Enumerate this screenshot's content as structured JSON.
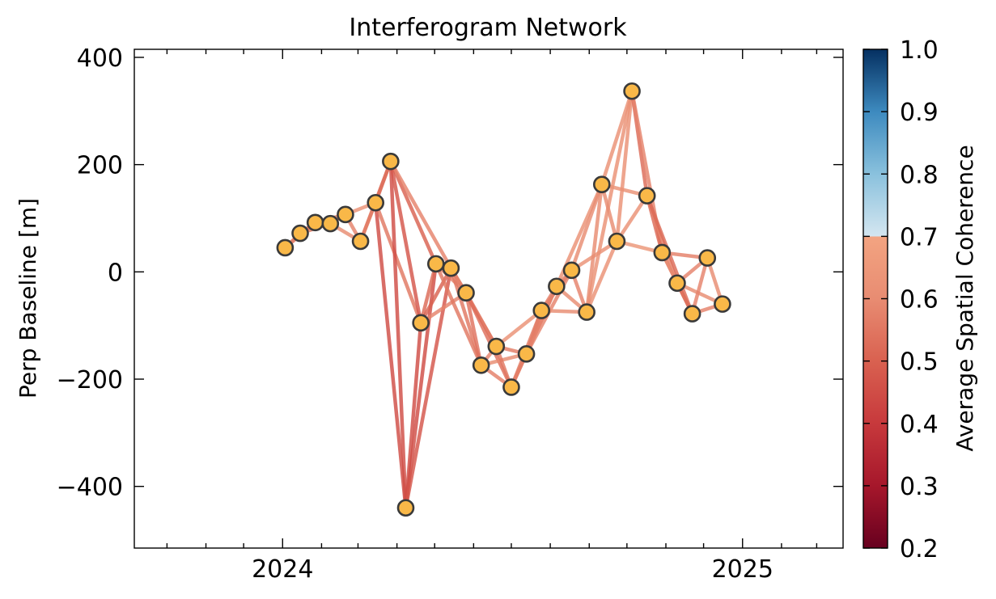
{
  "chart_data": {
    "type": "scatter",
    "title": "Interferogram Network",
    "xlabel": "",
    "ylabel": "Perp Baseline [m]",
    "xlim": [
      "2023-09-05",
      "2025-03-22"
    ],
    "ylim": [
      -515,
      415
    ],
    "x_ticks": [
      {
        "date": "2024-01-01",
        "label": "2024"
      },
      {
        "date": "2025-01-01",
        "label": "2025"
      }
    ],
    "x_minor_ticks": [
      "2023-10-01",
      "2023-11-01",
      "2023-12-01",
      "2024-02-01",
      "2024-03-01",
      "2024-04-01",
      "2024-05-01",
      "2024-06-01",
      "2024-07-01",
      "2024-08-01",
      "2024-09-01",
      "2024-10-01",
      "2024-11-01",
      "2024-12-01",
      "2025-02-01",
      "2025-03-01"
    ],
    "y_ticks": [
      -400,
      -200,
      0,
      200,
      400
    ],
    "y_tick_labels": [
      "−400",
      "−200",
      "0",
      "200",
      "400"
    ],
    "grid": false,
    "node_color": "#f9b848",
    "node_edge_color": "#3a3a3a",
    "acquisitions": [
      {
        "date": "2024-01-03",
        "bperp": 45
      },
      {
        "date": "2024-01-15",
        "bperp": 72
      },
      {
        "date": "2024-01-27",
        "bperp": 92
      },
      {
        "date": "2024-02-08",
        "bperp": 90
      },
      {
        "date": "2024-02-20",
        "bperp": 107
      },
      {
        "date": "2024-03-03",
        "bperp": 57
      },
      {
        "date": "2024-03-15",
        "bperp": 129
      },
      {
        "date": "2024-03-27",
        "bperp": 206
      },
      {
        "date": "2024-04-08",
        "bperp": -440
      },
      {
        "date": "2024-04-20",
        "bperp": -95
      },
      {
        "date": "2024-05-02",
        "bperp": 15
      },
      {
        "date": "2024-05-14",
        "bperp": 7
      },
      {
        "date": "2024-05-26",
        "bperp": -39
      },
      {
        "date": "2024-06-07",
        "bperp": -174
      },
      {
        "date": "2024-06-19",
        "bperp": -139
      },
      {
        "date": "2024-07-01",
        "bperp": -215
      },
      {
        "date": "2024-07-13",
        "bperp": -153
      },
      {
        "date": "2024-07-25",
        "bperp": -72
      },
      {
        "date": "2024-08-06",
        "bperp": -27
      },
      {
        "date": "2024-08-18",
        "bperp": 3
      },
      {
        "date": "2024-08-30",
        "bperp": -75
      },
      {
        "date": "2024-09-11",
        "bperp": 163
      },
      {
        "date": "2024-09-23",
        "bperp": 57
      },
      {
        "date": "2024-10-05",
        "bperp": 337
      },
      {
        "date": "2024-10-17",
        "bperp": 142
      },
      {
        "date": "2024-10-29",
        "bperp": 36
      },
      {
        "date": "2024-11-10",
        "bperp": -21
      },
      {
        "date": "2024-11-22",
        "bperp": -78
      },
      {
        "date": "2024-12-04",
        "bperp": 26
      },
      {
        "date": "2024-12-16",
        "bperp": -60
      }
    ],
    "interferograms": [
      [
        0,
        1,
        0.55
      ],
      [
        0,
        2,
        0.57
      ],
      [
        1,
        2,
        0.55
      ],
      [
        1,
        3,
        0.56
      ],
      [
        2,
        3,
        0.56
      ],
      [
        2,
        4,
        0.58
      ],
      [
        3,
        4,
        0.57
      ],
      [
        3,
        5,
        0.6
      ],
      [
        4,
        5,
        0.58
      ],
      [
        4,
        6,
        0.62
      ],
      [
        5,
        6,
        0.6
      ],
      [
        5,
        7,
        0.55
      ],
      [
        6,
        7,
        0.52
      ],
      [
        6,
        8,
        0.45
      ],
      [
        6,
        9,
        0.55
      ],
      [
        7,
        8,
        0.45
      ],
      [
        7,
        9,
        0.47
      ],
      [
        7,
        10,
        0.5
      ],
      [
        7,
        11,
        0.58
      ],
      [
        8,
        9,
        0.45
      ],
      [
        8,
        10,
        0.45
      ],
      [
        8,
        11,
        0.47
      ],
      [
        9,
        10,
        0.52
      ],
      [
        9,
        11,
        0.5
      ],
      [
        9,
        12,
        0.58
      ],
      [
        10,
        11,
        0.56
      ],
      [
        10,
        12,
        0.57
      ],
      [
        10,
        13,
        0.55
      ],
      [
        11,
        12,
        0.56
      ],
      [
        11,
        13,
        0.55
      ],
      [
        11,
        14,
        0.57
      ],
      [
        12,
        13,
        0.54
      ],
      [
        12,
        14,
        0.55
      ],
      [
        12,
        15,
        0.53
      ],
      [
        13,
        14,
        0.58
      ],
      [
        13,
        15,
        0.57
      ],
      [
        13,
        16,
        0.6
      ],
      [
        14,
        15,
        0.55
      ],
      [
        14,
        16,
        0.56
      ],
      [
        14,
        17,
        0.62
      ],
      [
        15,
        16,
        0.55
      ],
      [
        15,
        17,
        0.56
      ],
      [
        15,
        18,
        0.57
      ],
      [
        16,
        17,
        0.56
      ],
      [
        16,
        18,
        0.57
      ],
      [
        16,
        19,
        0.58
      ],
      [
        17,
        18,
        0.57
      ],
      [
        17,
        19,
        0.58
      ],
      [
        17,
        20,
        0.6
      ],
      [
        18,
        19,
        0.58
      ],
      [
        18,
        20,
        0.6
      ],
      [
        18,
        21,
        0.62
      ],
      [
        19,
        20,
        0.58
      ],
      [
        19,
        21,
        0.6
      ],
      [
        19,
        22,
        0.62
      ],
      [
        20,
        21,
        0.6
      ],
      [
        20,
        22,
        0.62
      ],
      [
        20,
        23,
        0.62
      ],
      [
        21,
        22,
        0.6
      ],
      [
        21,
        23,
        0.62
      ],
      [
        21,
        24,
        0.62
      ],
      [
        22,
        23,
        0.62
      ],
      [
        22,
        24,
        0.62
      ],
      [
        22,
        25,
        0.64
      ],
      [
        23,
        24,
        0.52
      ],
      [
        23,
        25,
        0.58
      ],
      [
        24,
        25,
        0.52
      ],
      [
        24,
        26,
        0.58
      ],
      [
        24,
        27,
        0.52
      ],
      [
        25,
        26,
        0.55
      ],
      [
        25,
        27,
        0.6
      ],
      [
        25,
        28,
        0.57
      ],
      [
        26,
        27,
        0.52
      ],
      [
        26,
        28,
        0.58
      ],
      [
        26,
        29,
        0.6
      ],
      [
        27,
        28,
        0.58
      ],
      [
        27,
        29,
        0.58
      ],
      [
        28,
        29,
        0.6
      ]
    ],
    "colorbar": {
      "label": "Average Spatial Coherence",
      "range": [
        0.2,
        1.0
      ],
      "ticks": [
        0.2,
        0.3,
        0.4,
        0.5,
        0.6,
        0.7,
        0.8,
        0.9,
        1.0
      ],
      "tick_labels": [
        "0.2",
        "0.3",
        "0.4",
        "0.5",
        "0.6",
        "0.7",
        "0.8",
        "0.9",
        "1.0"
      ],
      "colormap": [
        {
          "v": 0.2,
          "color": "#67001f"
        },
        {
          "v": 0.3,
          "color": "#a6172b"
        },
        {
          "v": 0.4,
          "color": "#c7393c"
        },
        {
          "v": 0.5,
          "color": "#d96150"
        },
        {
          "v": 0.6,
          "color": "#e88c72"
        },
        {
          "v": 0.7,
          "color": "#f3a481"
        },
        {
          "v": 0.70001,
          "color": "#d4e6f0"
        },
        {
          "v": 0.8,
          "color": "#8ac1dd"
        },
        {
          "v": 0.9,
          "color": "#3d8abf"
        },
        {
          "v": 1.0,
          "color": "#053061"
        }
      ]
    }
  }
}
